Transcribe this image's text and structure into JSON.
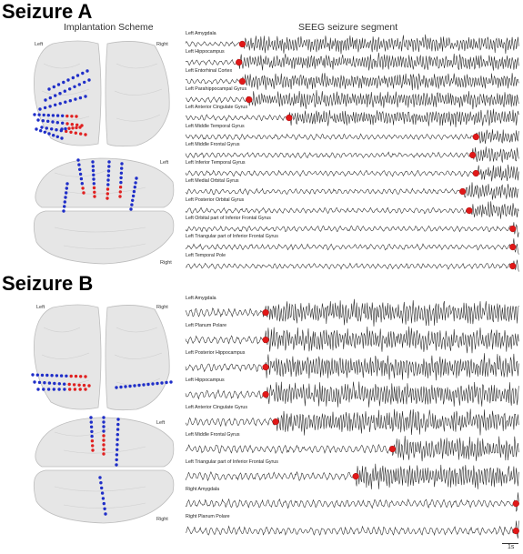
{
  "panels": [
    {
      "id": "A",
      "title": "Seizure A",
      "left_heading": "Implantation Scheme",
      "right_heading": "SEEG seizure segment",
      "axial_labels": {
        "left": "Left",
        "right": "Right"
      },
      "sagittal_labels": {
        "top": "Left",
        "bottom": "Right"
      },
      "channels": [
        {
          "label": "Left Amygdala",
          "onset": 0.17
        },
        {
          "label": "Left Hippocampus",
          "onset": 0.16
        },
        {
          "label": "Left Entorhinal Cortex",
          "onset": 0.17
        },
        {
          "label": "Left Parahippocampal Gyrus",
          "onset": 0.19
        },
        {
          "label": "Left Anterior Cingulate Gyrus",
          "onset": 0.31
        },
        {
          "label": "Left Middle Temporal Gyrus",
          "onset": 0.87
        },
        {
          "label": "Left Middle Frontal Gyrus",
          "onset": 0.86
        },
        {
          "label": "Left Inferior Temporal Gyrus",
          "onset": 0.87
        },
        {
          "label": "Left Medial Orbital Gyrus",
          "onset": 0.83
        },
        {
          "label": "Left Posterior Orbital Gyrus",
          "onset": 0.85
        },
        {
          "label": "Left Orbital part of Inferior Frontal Gyrus",
          "onset": 0.98
        },
        {
          "label": "Left Triangular part of Inferior Frontal Gyrus",
          "onset": 0.98
        },
        {
          "label": "Left Temporal Pole",
          "onset": 0.98
        }
      ]
    },
    {
      "id": "B",
      "title": "Seizure B",
      "axial_labels": {
        "left": "Left",
        "right": "Right"
      },
      "sagittal_labels": {
        "top": "Left",
        "bottom": "Right"
      },
      "channels": [
        {
          "label": "Left Amygdala",
          "onset": 0.24
        },
        {
          "label": "Left Planum Polare",
          "onset": 0.24
        },
        {
          "label": "Left Posterior Hippocampus",
          "onset": 0.24
        },
        {
          "label": "Left Hippocampus",
          "onset": 0.24
        },
        {
          "label": "Left Anterior Cingulate Gyrus",
          "onset": 0.27
        },
        {
          "label": "Left Middle Frontal Gyrus",
          "onset": 0.62
        },
        {
          "label": "Left Triangular part of Inferior Frontal Gyrus",
          "onset": 0.51
        },
        {
          "label": "Right Amygdala",
          "onset": 0.99
        },
        {
          "label": "Right Planum Polare",
          "onset": 0.99
        }
      ]
    }
  ],
  "scale_bar": "1s",
  "colors": {
    "electrode_left": "#1f2ec8",
    "electrode_onset": "#e02020",
    "marker": "#e01818",
    "trace": "#222222",
    "brain_fill": "#e6e6e6",
    "brain_stroke": "#bdbdbd"
  }
}
